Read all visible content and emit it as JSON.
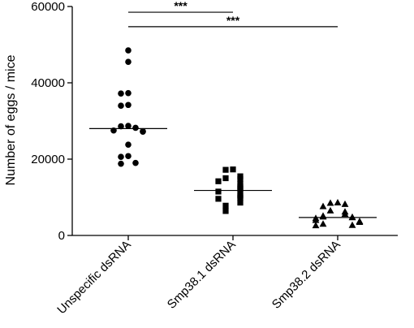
{
  "chart_data": {
    "type": "scatter",
    "title": "",
    "xlabel": "",
    "ylabel": "Number of eggs / mice",
    "ylim": [
      0,
      60000
    ],
    "yticks": [
      0,
      20000,
      40000,
      60000
    ],
    "ytick_labels": [
      "0",
      "20000",
      "40000",
      "60000"
    ],
    "grid": false,
    "categories": [
      "Unspecific dsRNA",
      "Smp38.1 dsRNA",
      "Smp38.2 dsRNA"
    ],
    "series": [
      {
        "marker": "circle",
        "values": [
          48500,
          45500,
          37300,
          37200,
          34200,
          34000,
          28700,
          28600,
          28200,
          27500,
          27300,
          27200,
          23800,
          20800,
          20600,
          19000,
          18800
        ],
        "median": 28000
      },
      {
        "marker": "square",
        "values": [
          17300,
          17200,
          15500,
          15000,
          14800,
          14200,
          13500,
          12800,
          12300,
          12000,
          11500,
          10600,
          10300,
          9800,
          9600,
          8600,
          7800,
          6400
        ],
        "median": 11800
      },
      {
        "marker": "triangle",
        "values": [
          8600,
          8500,
          8200,
          7600,
          6500,
          6200,
          5600,
          5100,
          4900,
          4800,
          4700,
          4500,
          4000,
          3700,
          3500,
          3000,
          2700,
          2600
        ],
        "median": 4700
      }
    ],
    "significance": [
      {
        "from": 0,
        "to": 1,
        "label": "***",
        "y": 58500
      },
      {
        "from": 0,
        "to": 2,
        "label": "***",
        "y": 54700
      }
    ]
  }
}
